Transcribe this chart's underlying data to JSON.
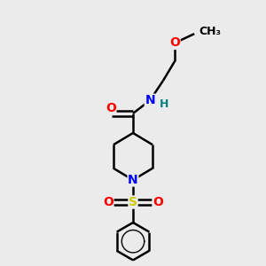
{
  "bg_color": "#ebebeb",
  "bond_color": "#000000",
  "atom_colors": {
    "O": "#ff0000",
    "N": "#0000ff",
    "S": "#cccc00",
    "H": "#008080",
    "C": "#000000"
  },
  "figsize": [
    3.0,
    3.0
  ],
  "dpi": 100,
  "bond_lw": 1.8,
  "font_size": 10
}
